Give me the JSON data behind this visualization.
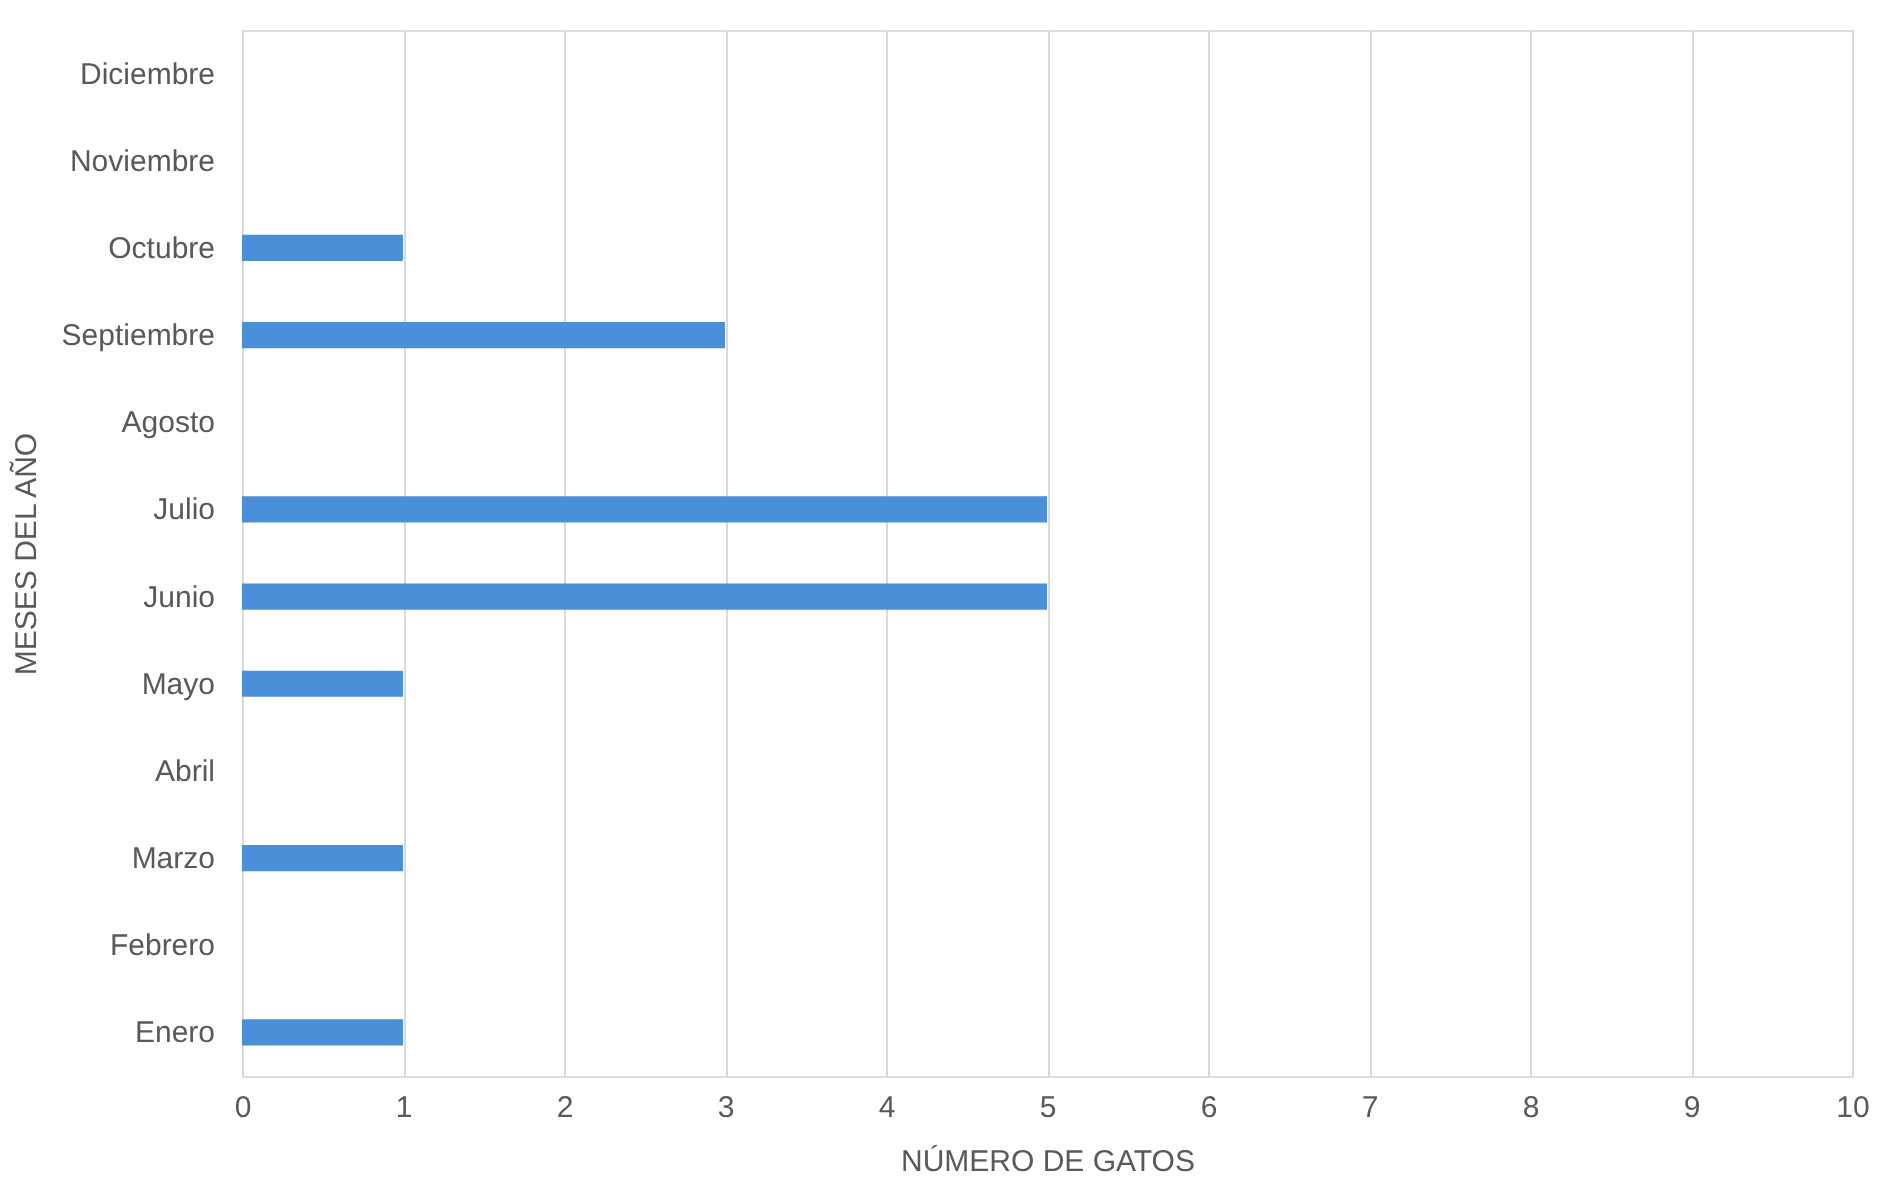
{
  "chart_data": {
    "type": "bar",
    "orientation": "horizontal",
    "xlabel": "NÚMERO DE GATOS",
    "ylabel": "MESES DEL AÑO",
    "categories": [
      "Diciembre",
      "Noviembre",
      "Octubre",
      "Septiembre",
      "Agosto",
      "Julio",
      "Junio",
      "Mayo",
      "Abril",
      "Marzo",
      "Febrero",
      "Enero"
    ],
    "values": [
      0,
      0,
      1,
      3,
      0,
      5,
      5,
      1,
      0,
      1,
      0,
      1
    ],
    "color": "#4a90d9",
    "xlim": [
      0,
      10
    ],
    "xticks": [
      0,
      1,
      2,
      3,
      4,
      5,
      6,
      7,
      8,
      9,
      10
    ],
    "grid": "x"
  }
}
